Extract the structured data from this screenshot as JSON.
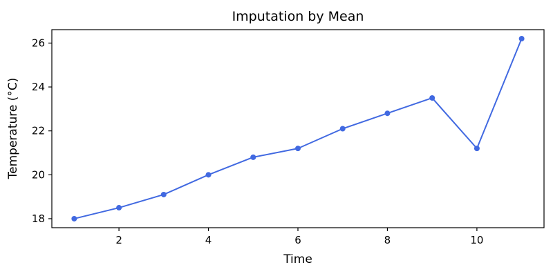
{
  "figure": {
    "background": "#ffffff",
    "frame_color": "#000000",
    "text_color": "#000000"
  },
  "chart_data": {
    "type": "line",
    "title": "Imputation by Mean",
    "xlabel": "Time",
    "ylabel": "Temperature (°C)",
    "x": [
      1,
      2,
      3,
      4,
      5,
      6,
      7,
      8,
      9,
      10,
      11
    ],
    "values": [
      18.0,
      18.5,
      19.1,
      20.0,
      20.8,
      21.2,
      22.1,
      22.8,
      23.5,
      21.2,
      26.2
    ],
    "series_name": "Temperature",
    "line_color": "#4169E1",
    "marker": "circle",
    "marker_radius": 4,
    "line_width": 2,
    "xlim": [
      0.5,
      11.5
    ],
    "ylim": [
      17.59,
      26.61
    ],
    "xticks": [
      2,
      4,
      6,
      8,
      10
    ],
    "yticks": [
      18,
      20,
      22,
      24,
      26
    ],
    "grid": false,
    "legend": false
  }
}
